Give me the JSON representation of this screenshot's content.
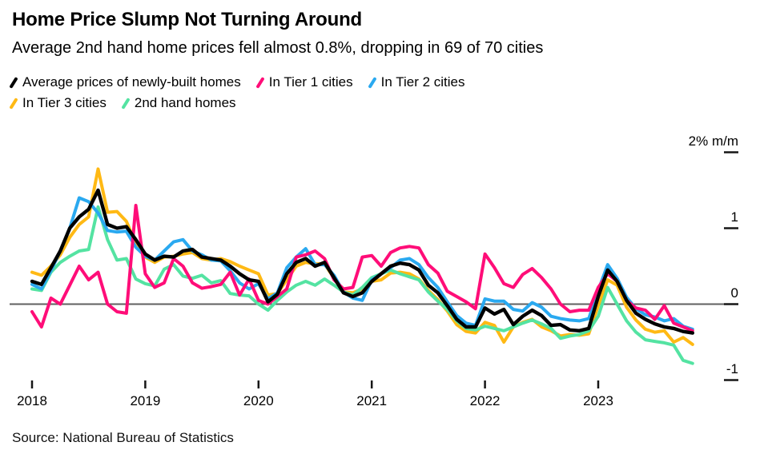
{
  "header": {
    "title": "Home Price Slump Not Turning Around",
    "subtitle": "Average 2nd hand home prices fell almost 0.8%, dropping in 69 of 70 cities"
  },
  "legend": {
    "rows": [
      [
        {
          "label": "Average prices of newly-built homes",
          "color": "#000000"
        },
        {
          "label": "In Tier 1 cities",
          "color": "#ff0d78"
        },
        {
          "label": "In Tier 2 cities",
          "color": "#2aa9f0"
        }
      ],
      [
        {
          "label": "In Tier 3 cities",
          "color": "#ffb914"
        },
        {
          "label": "2nd hand homes",
          "color": "#54e3a2"
        }
      ]
    ]
  },
  "chart_data": {
    "type": "line",
    "frequency": "monthly",
    "x_start": "2018-01",
    "x_end": "2023-11",
    "grid": "zero-baseline-only",
    "legend_position": "top-left",
    "colors": {
      "baseline": "#5f5f5f",
      "tick": "#161616"
    },
    "y_axis": {
      "unit_label": "2% m/m",
      "ylim": [
        -1.1,
        2.1
      ],
      "ticks": [
        {
          "label": "2% m/m",
          "value": 2
        },
        {
          "label": "1",
          "value": 1
        },
        {
          "label": "0",
          "value": 0
        },
        {
          "label": "-1",
          "value": -1
        }
      ]
    },
    "x_axis": {
      "year_ticks": [
        {
          "label": "2018",
          "month_index": 0
        },
        {
          "label": "2019",
          "month_index": 12
        },
        {
          "label": "2020",
          "month_index": 24
        },
        {
          "label": "2021",
          "month_index": 36
        },
        {
          "label": "2022",
          "month_index": 48
        },
        {
          "label": "2023",
          "month_index": 60
        }
      ]
    },
    "series": [
      {
        "id": "new_homes",
        "name": "Average prices of newly-built homes",
        "color": "#000000",
        "line_width": 4.4,
        "values": [
          0.3,
          0.26,
          0.48,
          0.7,
          1.0,
          1.15,
          1.25,
          1.5,
          1.05,
          1.0,
          1.02,
          0.85,
          0.66,
          0.58,
          0.63,
          0.62,
          0.7,
          0.72,
          0.62,
          0.6,
          0.58,
          0.5,
          0.4,
          0.32,
          0.3,
          0.03,
          0.13,
          0.4,
          0.55,
          0.6,
          0.5,
          0.55,
          0.35,
          0.15,
          0.1,
          0.15,
          0.3,
          0.4,
          0.5,
          0.54,
          0.52,
          0.45,
          0.25,
          0.15,
          -0.02,
          -0.2,
          -0.3,
          -0.3,
          -0.05,
          -0.13,
          -0.07,
          -0.27,
          -0.16,
          -0.08,
          -0.15,
          -0.28,
          -0.27,
          -0.34,
          -0.35,
          -0.32,
          0.1,
          0.45,
          0.3,
          0.05,
          -0.12,
          -0.2,
          -0.26,
          -0.3,
          -0.32,
          -0.36,
          -0.38
        ]
      },
      {
        "id": "tier1",
        "name": "In Tier 1 cities",
        "color": "#ff0d78",
        "line_width": 4.0,
        "values": [
          -0.1,
          -0.3,
          0.08,
          0.0,
          0.25,
          0.5,
          0.32,
          0.42,
          0.0,
          -0.1,
          -0.12,
          1.3,
          0.4,
          0.22,
          0.28,
          0.6,
          0.5,
          0.28,
          0.21,
          0.23,
          0.26,
          0.42,
          0.12,
          0.33,
          0.05,
          0.0,
          0.1,
          0.2,
          0.62,
          0.65,
          0.7,
          0.6,
          0.32,
          0.2,
          0.22,
          0.62,
          0.64,
          0.5,
          0.68,
          0.74,
          0.76,
          0.74,
          0.52,
          0.41,
          0.17,
          0.1,
          0.03,
          -0.06,
          0.66,
          0.48,
          0.27,
          0.22,
          0.39,
          0.47,
          0.35,
          0.2,
          0.0,
          -0.1,
          -0.08,
          -0.08,
          0.22,
          0.4,
          0.3,
          0.05,
          -0.05,
          -0.08,
          -0.2,
          -0.02,
          -0.25,
          -0.3,
          -0.35
        ]
      },
      {
        "id": "tier2",
        "name": "In Tier 2 cities",
        "color": "#2aa9f0",
        "line_width": 4.0,
        "values": [
          0.26,
          0.2,
          0.44,
          0.7,
          1.0,
          1.4,
          1.35,
          1.2,
          0.97,
          0.95,
          0.96,
          0.75,
          0.63,
          0.58,
          0.7,
          0.82,
          0.85,
          0.7,
          0.65,
          0.58,
          0.57,
          0.44,
          0.28,
          0.2,
          0.27,
          0.07,
          0.15,
          0.48,
          0.62,
          0.73,
          0.52,
          0.52,
          0.38,
          0.16,
          0.08,
          0.05,
          0.32,
          0.4,
          0.48,
          0.58,
          0.6,
          0.52,
          0.35,
          0.22,
          0.03,
          -0.15,
          -0.25,
          -0.28,
          0.07,
          0.04,
          0.04,
          -0.07,
          -0.09,
          0.02,
          -0.04,
          -0.16,
          -0.19,
          -0.21,
          -0.22,
          -0.19,
          0.18,
          0.52,
          0.34,
          0.09,
          -0.06,
          -0.14,
          -0.17,
          -0.22,
          -0.19,
          -0.29,
          -0.33
        ]
      },
      {
        "id": "tier3",
        "name": "In Tier 3 cities",
        "color": "#ffb914",
        "line_width": 4.0,
        "values": [
          0.42,
          0.38,
          0.5,
          0.65,
          0.88,
          1.05,
          1.15,
          1.78,
          1.21,
          1.22,
          1.09,
          0.8,
          0.62,
          0.55,
          0.62,
          0.63,
          0.66,
          0.68,
          0.6,
          0.58,
          0.6,
          0.56,
          0.5,
          0.45,
          0.4,
          0.12,
          0.14,
          0.32,
          0.5,
          0.55,
          0.53,
          0.53,
          0.34,
          0.16,
          0.15,
          0.2,
          0.3,
          0.32,
          0.41,
          0.42,
          0.4,
          0.33,
          0.18,
          0.06,
          -0.09,
          -0.27,
          -0.36,
          -0.38,
          -0.24,
          -0.28,
          -0.5,
          -0.3,
          -0.24,
          -0.2,
          -0.3,
          -0.35,
          -0.42,
          -0.4,
          -0.41,
          -0.39,
          -0.02,
          0.32,
          0.25,
          -0.04,
          -0.21,
          -0.33,
          -0.37,
          -0.35,
          -0.5,
          -0.44,
          -0.53
        ]
      },
      {
        "id": "second_hand",
        "name": "2nd hand homes",
        "color": "#54e3a2",
        "line_width": 4.0,
        "values": [
          0.2,
          0.18,
          0.42,
          0.55,
          0.63,
          0.7,
          0.72,
          1.28,
          0.85,
          0.58,
          0.6,
          0.33,
          0.27,
          0.24,
          0.46,
          0.52,
          0.37,
          0.34,
          0.38,
          0.28,
          0.31,
          0.14,
          0.12,
          0.11,
          0.0,
          -0.08,
          0.05,
          0.16,
          0.25,
          0.3,
          0.25,
          0.33,
          0.25,
          0.16,
          0.12,
          0.22,
          0.35,
          0.4,
          0.45,
          0.4,
          0.36,
          0.32,
          0.16,
          0.04,
          -0.07,
          -0.22,
          -0.32,
          -0.34,
          -0.29,
          -0.32,
          -0.35,
          -0.3,
          -0.25,
          -0.21,
          -0.26,
          -0.32,
          -0.45,
          -0.42,
          -0.4,
          -0.35,
          -0.16,
          0.22,
          0.0,
          -0.22,
          -0.37,
          -0.47,
          -0.49,
          -0.51,
          -0.54,
          -0.74,
          -0.78
        ]
      }
    ],
    "draw_order": [
      "tier3",
      "second_hand",
      "tier2",
      "tier1",
      "new_homes"
    ]
  },
  "source": "Source: National Bureau of Statistics"
}
